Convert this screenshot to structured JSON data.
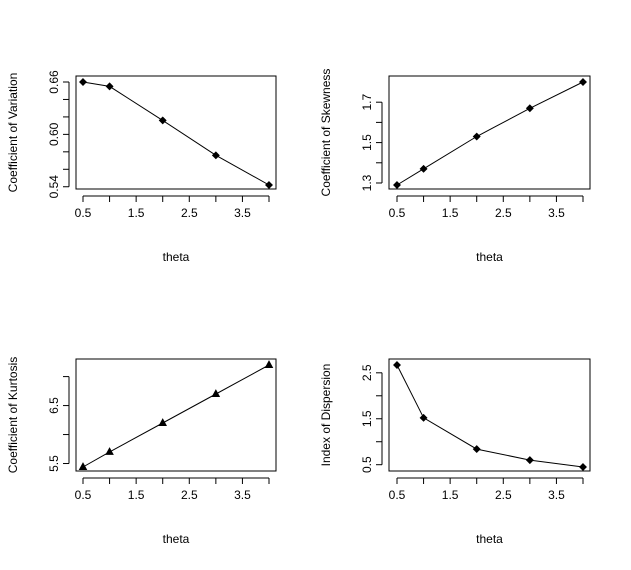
{
  "chart_data": [
    {
      "type": "line",
      "title": "",
      "xlabel": "theta",
      "ylabel": "Coefficient of Variation",
      "x": [
        0.5,
        1,
        2,
        3,
        4
      ],
      "values": [
        0.66,
        0.655,
        0.616,
        0.576,
        0.542
      ],
      "xlim": [
        0.5,
        4
      ],
      "ylim": [
        0.542,
        0.66
      ],
      "xticks": [
        0.5,
        1,
        1.5,
        2,
        2.5,
        3,
        3.5,
        4
      ],
      "xtick_labels": [
        "0.5",
        "",
        "1.5",
        "",
        "2.5",
        "",
        "3.5",
        ""
      ],
      "yticks": [
        0.54,
        0.56,
        0.58,
        0.6,
        0.62,
        0.64,
        0.66
      ],
      "ytick_labels": [
        "0.54",
        "",
        "",
        "0.60",
        "",
        "",
        "0.66"
      ],
      "marker": "diamond",
      "grid": false
    },
    {
      "type": "line",
      "title": "",
      "xlabel": "theta",
      "ylabel": "Coefficient of Skewness",
      "x": [
        0.5,
        1,
        2,
        3,
        4
      ],
      "values": [
        1.29,
        1.37,
        1.53,
        1.67,
        1.8
      ],
      "xlim": [
        0.5,
        4
      ],
      "ylim": [
        1.29,
        1.8
      ],
      "xticks": [
        0.5,
        1,
        1.5,
        2,
        2.5,
        3,
        3.5,
        4
      ],
      "xtick_labels": [
        "0.5",
        "",
        "1.5",
        "",
        "2.5",
        "",
        "3.5",
        ""
      ],
      "yticks": [
        1.3,
        1.4,
        1.5,
        1.6,
        1.7
      ],
      "ytick_labels": [
        "1.3",
        "",
        "1.5",
        "",
        "1.7"
      ],
      "marker": "diamond",
      "grid": false
    },
    {
      "type": "line",
      "title": "",
      "xlabel": "theta",
      "ylabel": "Coefficient of Kurtosis",
      "x": [
        0.5,
        1,
        2,
        3,
        4
      ],
      "values": [
        5.44,
        5.7,
        6.2,
        6.7,
        7.2
      ],
      "xlim": [
        0.5,
        4
      ],
      "ylim": [
        5.44,
        7.2
      ],
      "xticks": [
        0.5,
        1,
        1.5,
        2,
        2.5,
        3,
        3.5,
        4
      ],
      "xtick_labels": [
        "0.5",
        "",
        "1.5",
        "",
        "2.5",
        "",
        "3.5",
        ""
      ],
      "yticks": [
        5.5,
        6,
        6.5,
        7
      ],
      "ytick_labels": [
        "5.5",
        "",
        "6.5",
        ""
      ],
      "marker": "triangle",
      "grid": false
    },
    {
      "type": "line",
      "title": "",
      "xlabel": "theta",
      "ylabel": "Index of Dispersion",
      "x": [
        0.5,
        1,
        2,
        3,
        4
      ],
      "values": [
        2.67,
        1.52,
        0.84,
        0.6,
        0.45
      ],
      "xlim": [
        0.5,
        4
      ],
      "ylim": [
        0.45,
        2.67
      ],
      "xticks": [
        0.5,
        1,
        1.5,
        2,
        2.5,
        3,
        3.5,
        4
      ],
      "xtick_labels": [
        "0.5",
        "",
        "1.5",
        "",
        "2.5",
        "",
        "3.5",
        ""
      ],
      "yticks": [
        0.5,
        1,
        1.5,
        2,
        2.5
      ],
      "ytick_labels": [
        "0.5",
        "",
        "1.5",
        "",
        "2.5"
      ],
      "marker": "diamond",
      "grid": false
    }
  ]
}
